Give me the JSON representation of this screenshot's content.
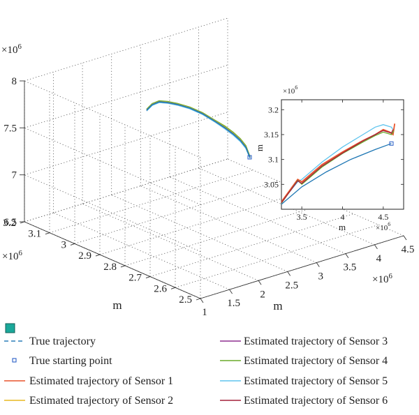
{
  "chart_data": [
    {
      "type": "line3d",
      "z_scale_label": "×10^6",
      "x_scale_label": "×10^6",
      "y_scale_label": "×10^6",
      "z_ticks": [
        "6.5",
        "7",
        "7.5",
        "8"
      ],
      "x_ticks": [
        "1",
        "1.5",
        "2",
        "2.5",
        "3",
        "3.5",
        "4",
        "4.5"
      ],
      "y_ticks": [
        "2.5",
        "2.6",
        "2.7",
        "2.8",
        "2.9",
        "3",
        "3.1",
        "3.2"
      ],
      "x_label": "m",
      "y_label": "m",
      "zlim": [
        6.5,
        8
      ],
      "xlim": [
        1,
        4.5
      ],
      "ylim": [
        2.5,
        3.2
      ],
      "grid": true,
      "series": [
        {
          "name": "True trajectory",
          "color": "#1f77b4"
        },
        {
          "name": "True starting point",
          "color": "#2b5fc7"
        },
        {
          "name": "Estimated trajectory of Sensor 1",
          "color": "#e8532b"
        },
        {
          "name": "Estimated trajectory of Sensor 2",
          "color": "#e8b820"
        },
        {
          "name": "Estimated trajectory of Sensor 3",
          "color": "#8e2f8f"
        },
        {
          "name": "Estimated trajectory of Sensor 4",
          "color": "#6aaa2a"
        },
        {
          "name": "Estimated trajectory of Sensor 5",
          "color": "#5ec4ee"
        },
        {
          "name": "Estimated trajectory of Sensor 6",
          "color": "#a3213a"
        }
      ]
    },
    {
      "type": "line",
      "inset": true,
      "x_scale_label": "×10^6",
      "y_scale_label": "×10^6",
      "x_ticks": [
        "3.5",
        "4",
        "4.5"
      ],
      "y_ticks": [
        "3.05",
        "3.1",
        "3.15",
        "3.2"
      ],
      "xlabel": "m",
      "ylabel": "m",
      "xlim": [
        3.25,
        4.75
      ],
      "ylim": [
        3.0,
        3.22
      ],
      "series": [
        {
          "name": "True trajectory",
          "color": "#1f77b4",
          "x": [
            3.25,
            3.5,
            3.8,
            4.1,
            4.4,
            4.6
          ],
          "y": [
            3.01,
            3.045,
            3.075,
            3.1,
            3.12,
            3.132
          ]
        },
        {
          "name": "Estimated trajectory of Sensor 5",
          "color": "#5ec4ee",
          "x": [
            3.25,
            3.45,
            3.5,
            3.75,
            4.0,
            4.25,
            4.4,
            4.5,
            4.6,
            4.62
          ],
          "y": [
            3.015,
            3.055,
            3.06,
            3.095,
            3.125,
            3.15,
            3.165,
            3.17,
            3.165,
            3.16
          ]
        },
        {
          "name": "Estimated trajectory of Sensor 1",
          "color": "#e8532b",
          "x": [
            3.25,
            3.45,
            3.5,
            3.75,
            4.0,
            4.25,
            4.4,
            4.5,
            4.58,
            4.62,
            4.64
          ],
          "y": [
            3.015,
            3.06,
            3.055,
            3.09,
            3.115,
            3.138,
            3.15,
            3.16,
            3.155,
            3.15,
            3.172
          ]
        },
        {
          "name": "Estimated trajectory of Sensor 4",
          "color": "#6aaa2a",
          "x": [
            3.25,
            3.45,
            3.5,
            3.75,
            4.0,
            4.25,
            4.4,
            4.5,
            4.6,
            4.63
          ],
          "y": [
            3.012,
            3.058,
            3.05,
            3.085,
            3.112,
            3.135,
            3.148,
            3.155,
            3.15,
            3.158
          ]
        },
        {
          "name": "Estimated trajectory of Sensor 6",
          "color": "#a3213a",
          "x": [
            3.25,
            3.45,
            3.5,
            3.75,
            4.0,
            4.25,
            4.4,
            4.5,
            4.6,
            4.62
          ],
          "y": [
            3.013,
            3.057,
            3.052,
            3.087,
            3.113,
            3.137,
            3.15,
            3.158,
            3.153,
            3.16
          ]
        }
      ]
    }
  ],
  "legend": {
    "title_swatch_color": "#1aa89a",
    "items": [
      {
        "label": "True trajectory",
        "color": "#2c7fb8",
        "style": "dash"
      },
      {
        "label": "True starting point",
        "color": "#2b5fc7",
        "style": "square"
      },
      {
        "label": "Estimated trajectory of Sensor 1",
        "color": "#e8532b",
        "style": "line"
      },
      {
        "label": "Estimated trajectory of Sensor 2",
        "color": "#e8b820",
        "style": "line"
      },
      {
        "label": "Estimated trajectory of Sensor 3",
        "color": "#8e2f8f",
        "style": "line"
      },
      {
        "label": "Estimated trajectory of Sensor 4",
        "color": "#6aaa2a",
        "style": "line"
      },
      {
        "label": "Estimated trajectory of Sensor 5",
        "color": "#5ec4ee",
        "style": "line"
      },
      {
        "label": "Estimated trajectory of Sensor 6",
        "color": "#a3213a",
        "style": "line"
      }
    ]
  }
}
